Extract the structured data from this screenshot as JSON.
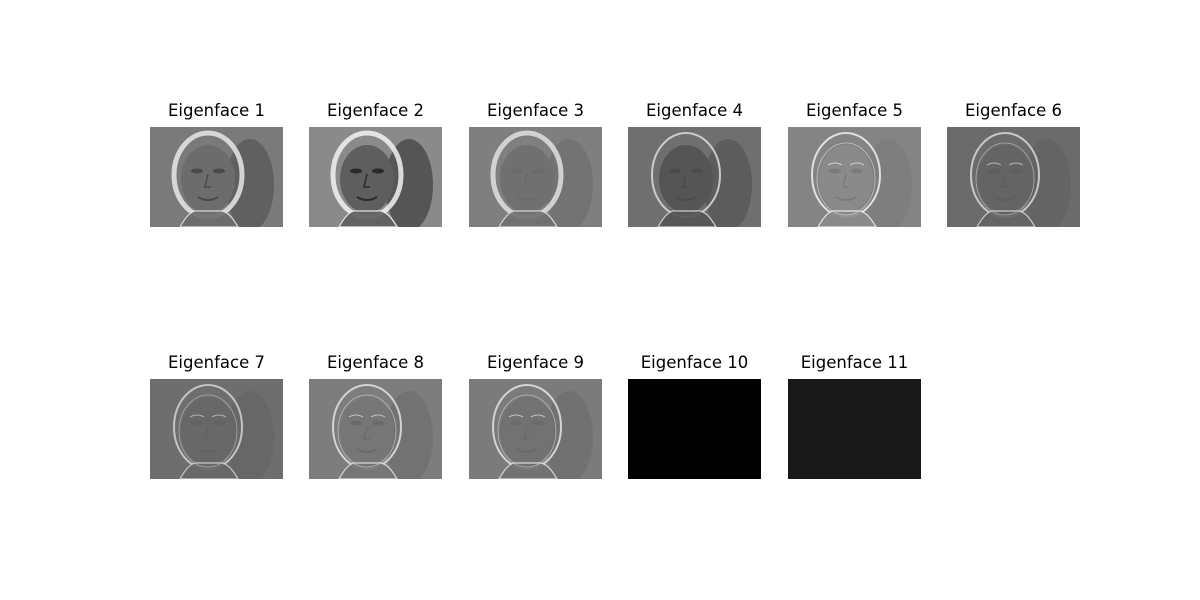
{
  "figure": {
    "panels": [
      {
        "title": "Eigenface 1",
        "base": "#7a7a7a",
        "shade": "#4a4a4a",
        "highlight": "#e8e8e8",
        "face": "#6c6c6c"
      },
      {
        "title": "Eigenface 2",
        "base": "#8a8a8a",
        "shade": "#2a2a2a",
        "highlight": "#f2f2f2",
        "face": "#5e5e5e"
      },
      {
        "title": "Eigenface 3",
        "base": "#7f7f7f",
        "shade": "#6a6a6a",
        "highlight": "#e0e0e0",
        "face": "#707070"
      },
      {
        "title": "Eigenface 4",
        "base": "#6f6f6f",
        "shade": "#4c4c4c",
        "highlight": "#dcdcdc",
        "face": "#555555"
      },
      {
        "title": "Eigenface 5",
        "base": "#848484",
        "shade": "#7a7a7a",
        "highlight": "#f0f0f0",
        "face": "#8a8a8a"
      },
      {
        "title": "Eigenface 6",
        "base": "#6b6b6b",
        "shade": "#5e5e5e",
        "highlight": "#d8d8d8",
        "face": "#646464"
      },
      {
        "title": "Eigenface 7",
        "base": "#6e6e6e",
        "shade": "#626262",
        "highlight": "#d4d4d4",
        "face": "#686868"
      },
      {
        "title": "Eigenface 8",
        "base": "#7d7d7d",
        "shade": "#6a6a6a",
        "highlight": "#e2e2e2",
        "face": "#767676"
      },
      {
        "title": "Eigenface 9",
        "base": "#7b7b7b",
        "shade": "#6a6a6a",
        "highlight": "#e4e4e4",
        "face": "#727272"
      },
      {
        "title": "Eigenface 10",
        "base": "#000000",
        "shade": "#000000",
        "highlight": "#000000",
        "face": "#000000"
      },
      {
        "title": "Eigenface 11",
        "base": "#181818",
        "shade": "#181818",
        "highlight": "#1c1c1c",
        "face": "#191919"
      }
    ]
  }
}
